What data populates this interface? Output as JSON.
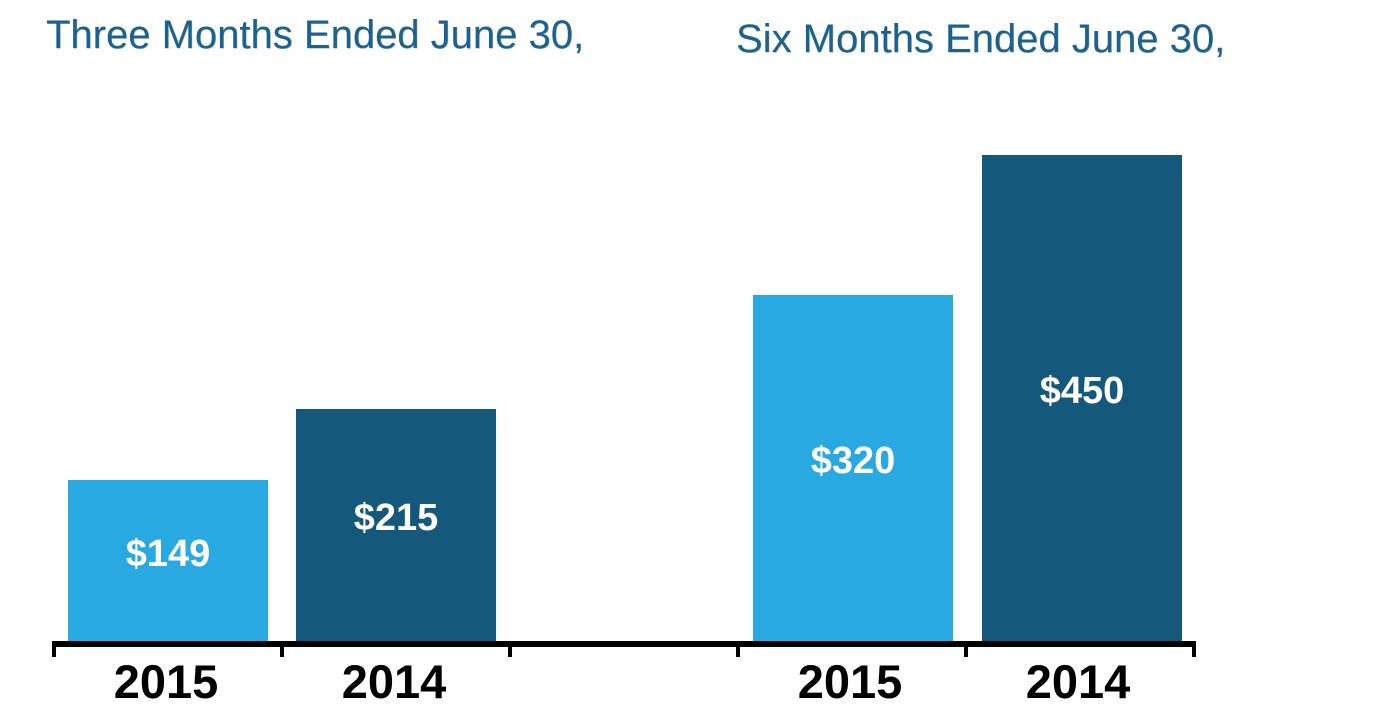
{
  "page": {
    "background": "#FFFFFF"
  },
  "colors": {
    "bar_2015": "#29A9E1",
    "bar_2014": "#14587C",
    "title_text": "#1A628F",
    "axis": "#000000",
    "value_label_text": "#FFFFFF",
    "category_label_text": "#000000"
  },
  "chart_data": [
    {
      "type": "bar",
      "title": "Three Months Ended June 30,",
      "categories": [
        "2015",
        "2014"
      ],
      "values": [
        149,
        215
      ],
      "data_labels": [
        "$149",
        "$215"
      ],
      "bars": [
        {
          "category": "2015",
          "value": 149,
          "label": "$149",
          "color_key": "bar_2015"
        },
        {
          "category": "2014",
          "value": 215,
          "label": "$215",
          "color_key": "bar_2014"
        }
      ],
      "xlabel": "",
      "ylabel": "",
      "legend": "none",
      "gridlines": false,
      "y_axis_visible": false
    },
    {
      "type": "bar",
      "title": "Six Months Ended June 30,",
      "categories": [
        "2015",
        "2014"
      ],
      "values": [
        320,
        450
      ],
      "data_labels": [
        "$320",
        "$450"
      ],
      "bars": [
        {
          "category": "2015",
          "value": 320,
          "label": "$320",
          "color_key": "bar_2015"
        },
        {
          "category": "2014",
          "value": 450,
          "label": "$450",
          "color_key": "bar_2014"
        }
      ],
      "xlabel": "",
      "ylabel": "",
      "legend": "none",
      "gridlines": false,
      "y_axis_visible": false
    }
  ]
}
